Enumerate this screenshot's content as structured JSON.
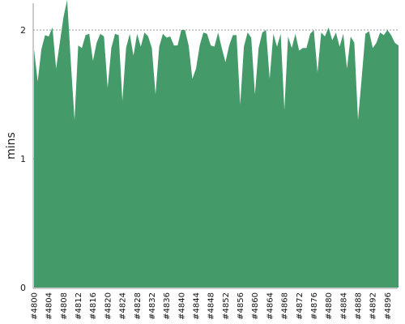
{
  "chart_data": {
    "type": "area",
    "title": "",
    "xlabel": "",
    "ylabel": "mins",
    "ylim": [
      0,
      2.2
    ],
    "yticks": [
      0,
      1,
      2
    ],
    "grid": "horizontal dashed",
    "legend": "none",
    "x": [
      "#4800",
      "#4801",
      "#4802",
      "#4803",
      "#4804",
      "#4805",
      "#4806",
      "#4807",
      "#4808",
      "#4809",
      "#4810",
      "#4811",
      "#4812",
      "#4813",
      "#4814",
      "#4815",
      "#4816",
      "#4817",
      "#4818",
      "#4819",
      "#4820",
      "#4821",
      "#4822",
      "#4823",
      "#4824",
      "#4825",
      "#4826",
      "#4827",
      "#4828",
      "#4829",
      "#4830",
      "#4831",
      "#4832",
      "#4833",
      "#4834",
      "#4835",
      "#4836",
      "#4837",
      "#4838",
      "#4839",
      "#4840",
      "#4841",
      "#4842",
      "#4843",
      "#4844",
      "#4845",
      "#4846",
      "#4847",
      "#4848",
      "#4849",
      "#4850",
      "#4851",
      "#4852",
      "#4853",
      "#4854",
      "#4855",
      "#4856",
      "#4857",
      "#4858",
      "#4859",
      "#4860",
      "#4861",
      "#4862",
      "#4863",
      "#4864",
      "#4865",
      "#4866",
      "#4867",
      "#4868",
      "#4869",
      "#4870",
      "#4871",
      "#4872",
      "#4873",
      "#4874",
      "#4875",
      "#4876",
      "#4877",
      "#4878",
      "#4879",
      "#4880",
      "#4881",
      "#4882",
      "#4883",
      "#4884",
      "#4885",
      "#4886",
      "#4887",
      "#4888",
      "#4889",
      "#4890",
      "#4891",
      "#4892",
      "#4893",
      "#4894",
      "#4895",
      "#4896",
      "#4897",
      "#4898",
      "#4899"
    ],
    "x_tick_labels": [
      "#4800",
      "#4804",
      "#4808",
      "#4812",
      "#4816",
      "#4820",
      "#4824",
      "#4828",
      "#4832",
      "#4836",
      "#4840",
      "#4844",
      "#4848",
      "#4852",
      "#4856",
      "#4860",
      "#4864",
      "#4868",
      "#4872",
      "#4876",
      "#4880",
      "#4884",
      "#4888",
      "#4892",
      "#4896"
    ],
    "series": [
      {
        "values": [
          1.85,
          1.6,
          1.85,
          1.96,
          1.95,
          2.02,
          1.7,
          1.9,
          2.1,
          2.35,
          1.75,
          1.3,
          1.88,
          1.86,
          1.96,
          1.97,
          1.76,
          1.9,
          1.97,
          1.95,
          1.55,
          1.86,
          1.97,
          1.96,
          1.45,
          1.86,
          1.97,
          1.8,
          1.97,
          1.87,
          1.98,
          1.95,
          1.86,
          1.5,
          1.87,
          1.97,
          1.94,
          1.95,
          1.88,
          1.88,
          2.0,
          2.0,
          1.88,
          1.62,
          1.7,
          1.88,
          1.98,
          1.97,
          1.88,
          1.87,
          1.98,
          1.86,
          1.75,
          1.88,
          1.96,
          1.96,
          1.42,
          1.87,
          1.98,
          1.94,
          1.5,
          1.86,
          1.98,
          2.0,
          1.62,
          1.97,
          1.87,
          1.97,
          1.38,
          1.95,
          1.86,
          1.97,
          1.84,
          1.86,
          1.86,
          1.97,
          2.0,
          1.67,
          1.98,
          1.95,
          2.02,
          1.92,
          1.98,
          1.87,
          1.97,
          1.7,
          1.95,
          1.9,
          1.3,
          1.63,
          1.97,
          1.99,
          1.86,
          1.9,
          1.98,
          1.96,
          2.0,
          1.96,
          1.9,
          1.88
        ]
      }
    ],
    "colors": {
      "area": "#459a6a",
      "axis": "#999999",
      "grid": "#7a7a7a"
    }
  }
}
